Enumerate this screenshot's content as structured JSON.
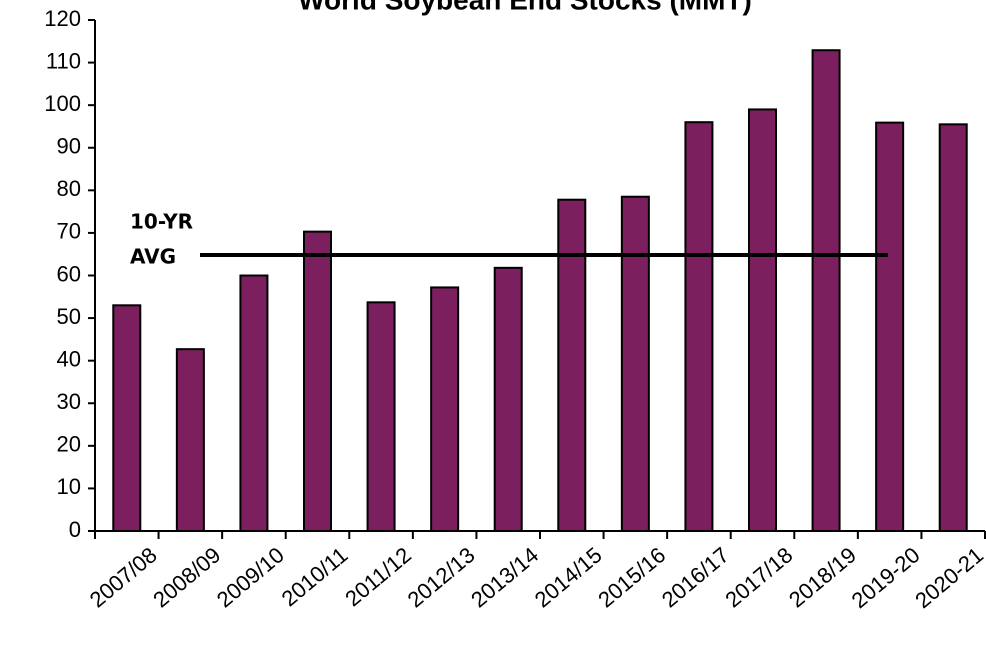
{
  "chart_data": {
    "type": "bar",
    "title": "World Soybean End Stocks (MMT)",
    "categories": [
      "2007/08",
      "2008/09",
      "2009/10",
      "2010/11",
      "2011/12",
      "2012/13",
      "2013/14",
      "2014/15",
      "2015/16",
      "2016/17",
      "2017/18",
      "2018/19",
      "2019-20",
      "2020-21"
    ],
    "values": [
      53,
      42.7,
      60,
      70.3,
      53.7,
      57.2,
      61.8,
      77.8,
      78.5,
      96,
      99,
      112.9,
      95.9,
      95.5
    ],
    "color": "#7b1f5e",
    "ylim": [
      0,
      120
    ],
    "yticks": [
      0,
      10,
      20,
      30,
      40,
      50,
      60,
      70,
      80,
      90,
      100,
      110,
      120
    ],
    "reference_line": {
      "value": 64.8,
      "label_lines": [
        "10-YR",
        "AVG"
      ]
    }
  }
}
